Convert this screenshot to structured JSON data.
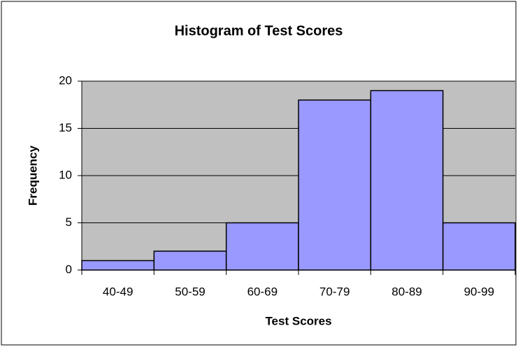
{
  "chart_data": {
    "type": "bar",
    "title": "Histogram of Test Scores",
    "x_label": "Test Scores",
    "y_label": "Frequency",
    "categories": [
      "40-49",
      "50-59",
      "60-69",
      "70-79",
      "80-89",
      "90-99"
    ],
    "values": [
      1,
      2,
      5,
      18,
      19,
      5
    ],
    "color": "#9999ff",
    "ylim": [
      0,
      20
    ],
    "yticks": [
      0,
      5,
      10,
      15,
      20
    ],
    "grid": true
  }
}
